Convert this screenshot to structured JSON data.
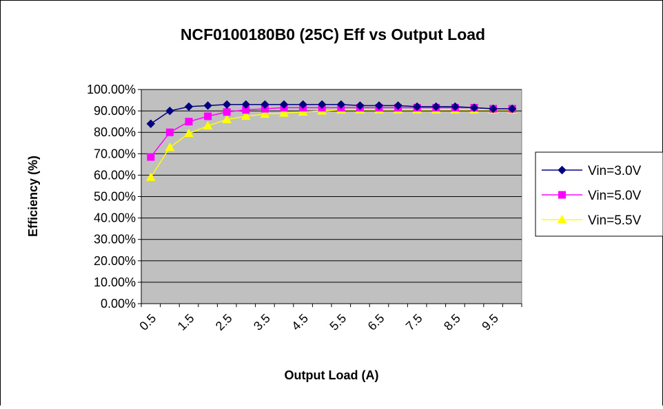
{
  "chart_data": {
    "type": "line",
    "title": "NCF0100180B0 (25C) Eff vs Output Load",
    "xlabel": "Output Load (A)",
    "ylabel": "Efficiency (%)",
    "x": [
      0.5,
      1.0,
      1.5,
      2.0,
      2.5,
      3.0,
      3.5,
      4.0,
      4.5,
      5.0,
      5.5,
      6.0,
      6.5,
      7.0,
      7.5,
      8.0,
      8.5,
      9.0,
      9.5,
      10.0
    ],
    "x_tick_labels": [
      "0.5",
      "1.5",
      "2.5",
      "3.5",
      "4.5",
      "5.5",
      "6.5",
      "7.5",
      "8.5",
      "9.5"
    ],
    "y_tick_labels": [
      "0.00%",
      "10.00%",
      "20.00%",
      "30.00%",
      "40.00%",
      "50.00%",
      "60.00%",
      "70.00%",
      "80.00%",
      "90.00%",
      "100.00%"
    ],
    "ylim": [
      0,
      100
    ],
    "grid": "horizontal",
    "legend_position": "right",
    "plot_background": "#c0c0c0",
    "series": [
      {
        "name": "Vin=3.0V",
        "color": "#000080",
        "marker": "diamond",
        "values": [
          84.0,
          90.0,
          92.0,
          92.5,
          93.0,
          93.0,
          93.0,
          93.0,
          93.0,
          93.0,
          93.0,
          92.5,
          92.5,
          92.5,
          92.0,
          92.0,
          92.0,
          91.5,
          91.0,
          91.0
        ]
      },
      {
        "name": "Vin=5.0V",
        "color": "#ff00ff",
        "marker": "square",
        "values": [
          68.5,
          80.0,
          85.0,
          87.5,
          89.5,
          90.5,
          91.0,
          91.5,
          91.5,
          91.5,
          91.5,
          91.5,
          91.5,
          91.5,
          91.5,
          91.5,
          91.5,
          91.5,
          91.0,
          91.0
        ]
      },
      {
        "name": "Vin=5.5V",
        "color": "#ffff00",
        "marker": "triangle",
        "values": [
          59.0,
          73.0,
          79.5,
          83.0,
          86.0,
          87.5,
          88.5,
          89.0,
          89.5,
          90.0,
          90.5,
          90.5,
          90.5,
          90.5,
          90.5,
          90.5,
          90.5,
          90.5,
          90.5,
          90.5
        ]
      }
    ]
  }
}
